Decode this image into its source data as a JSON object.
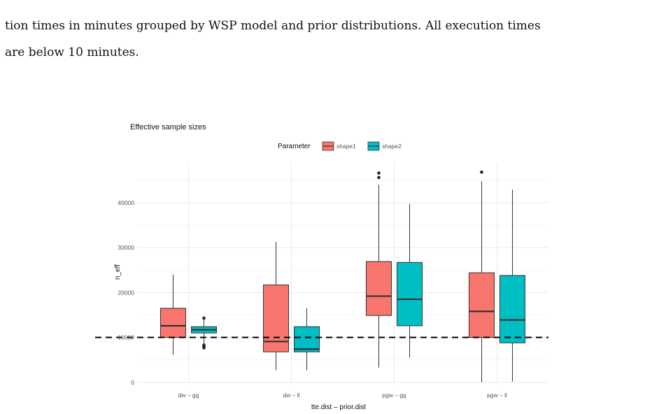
{
  "caption": {
    "line1": "tion times in minutes grouped by WSP model and prior distributions. All execution times",
    "line2": "are below 10 minutes."
  },
  "chart_data": {
    "type": "boxplot",
    "title": "Effective sample sizes",
    "xlabel": "tte.dist – prior.dist",
    "ylabel": "n_eff",
    "ylim": [
      -500,
      49000
    ],
    "yticks": [
      0,
      10000,
      20000,
      30000,
      40000
    ],
    "categories": [
      "dw – gg",
      "dw – ll",
      "pgw – gg",
      "pgw – ll"
    ],
    "legend": {
      "title": "Parameter",
      "position": "top",
      "entries": [
        "shape1",
        "shape2"
      ]
    },
    "reference_line": {
      "y": 10000,
      "style": "dashed"
    },
    "grid": true,
    "series": [
      {
        "name": "shape1",
        "color": "#F8766D",
        "boxes": [
          {
            "whisker_low": 6200,
            "q1": 10000,
            "median": 12600,
            "q3": 16500,
            "whisker_high": 24000,
            "outliers": []
          },
          {
            "whisker_low": 2700,
            "q1": 6800,
            "median": 9100,
            "q3": 21700,
            "whisker_high": 31300,
            "outliers": []
          },
          {
            "whisker_low": 3300,
            "q1": 14900,
            "median": 19200,
            "q3": 26900,
            "whisker_high": 44000,
            "outliers": [
              45600,
              46600
            ]
          },
          {
            "whisker_low": 0,
            "q1": 10000,
            "median": 15800,
            "q3": 24400,
            "whisker_high": 44800,
            "outliers": [
              46800
            ]
          }
        ]
      },
      {
        "name": "shape2",
        "color": "#00BFC4",
        "boxes": [
          {
            "whisker_low": 8500,
            "q1": 11000,
            "median": 11700,
            "q3": 12400,
            "whisker_high": 14300,
            "outliers": [
              7700,
              7900,
              8100,
              8300,
              14300
            ]
          },
          {
            "whisker_low": 2700,
            "q1": 6800,
            "median": 7400,
            "q3": 12400,
            "whisker_high": 16500,
            "outliers": []
          },
          {
            "whisker_low": 5500,
            "q1": 12600,
            "median": 18500,
            "q3": 26700,
            "whisker_high": 39700,
            "outliers": []
          },
          {
            "whisker_low": 200,
            "q1": 8800,
            "median": 13900,
            "q3": 23800,
            "whisker_high": 42900,
            "outliers": []
          }
        ]
      }
    ]
  }
}
